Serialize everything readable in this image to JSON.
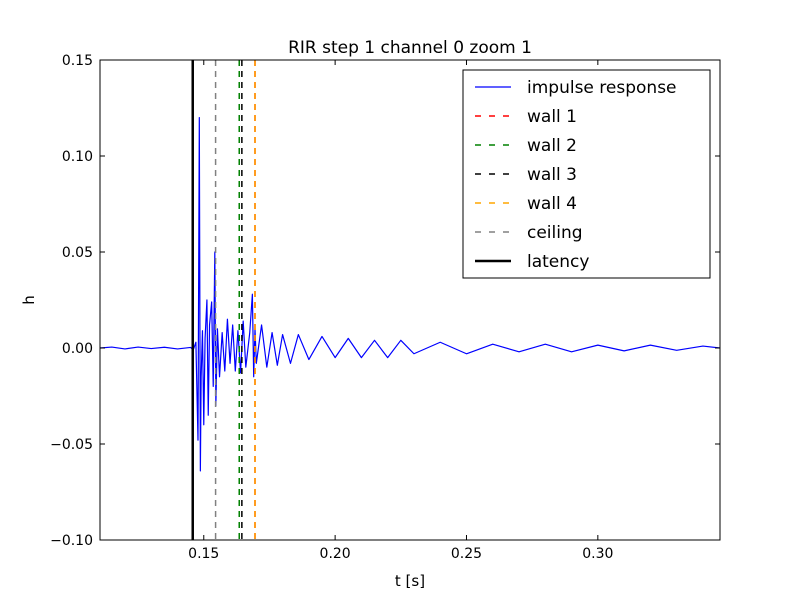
{
  "chart_data": {
    "type": "line",
    "title": "RIR step 1 channel 0 zoom 1",
    "xlabel": "t [s]",
    "ylabel": "h",
    "xlim": [
      0.1105,
      0.3465
    ],
    "ylim": [
      -0.1,
      0.15
    ],
    "x_ticks": [
      0.15,
      0.2,
      0.25,
      0.3
    ],
    "x_tick_labels": [
      "0.15",
      "0.20",
      "0.25",
      "0.30"
    ],
    "y_ticks": [
      -0.1,
      -0.05,
      0.0,
      0.05,
      0.1,
      0.15
    ],
    "y_tick_labels": [
      "−0.10",
      "−0.05",
      "0.00",
      "0.05",
      "0.10",
      "0.15"
    ],
    "grid": false,
    "legend_position": "top-right",
    "series": [
      {
        "name": "impulse response",
        "color": "#0000ff",
        "style": "solid",
        "points": [
          [
            0.1105,
            0.0
          ],
          [
            0.115,
            0.0005
          ],
          [
            0.12,
            -0.0005
          ],
          [
            0.125,
            0.0005
          ],
          [
            0.13,
            -0.0003
          ],
          [
            0.135,
            0.0004
          ],
          [
            0.14,
            -0.0005
          ],
          [
            0.145,
            0.0003
          ],
          [
            0.146,
            -0.001
          ],
          [
            0.147,
            0.003
          ],
          [
            0.1478,
            -0.048
          ],
          [
            0.1483,
            0.12
          ],
          [
            0.1487,
            -0.064
          ],
          [
            0.149,
            -0.015
          ],
          [
            0.1495,
            0.009
          ],
          [
            0.15,
            -0.04
          ],
          [
            0.1505,
            0.005
          ],
          [
            0.1512,
            0.025
          ],
          [
            0.1517,
            -0.035
          ],
          [
            0.1522,
            0.012
          ],
          [
            0.153,
            0.024
          ],
          [
            0.1536,
            -0.02
          ],
          [
            0.1542,
            0.05
          ],
          [
            0.1546,
            -0.03
          ],
          [
            0.1552,
            0.01
          ],
          [
            0.156,
            -0.015
          ],
          [
            0.157,
            0.008
          ],
          [
            0.158,
            -0.012
          ],
          [
            0.159,
            0.015
          ],
          [
            0.16,
            -0.008
          ],
          [
            0.161,
            0.012
          ],
          [
            0.162,
            -0.012
          ],
          [
            0.163,
            0.009
          ],
          [
            0.164,
            -0.013
          ],
          [
            0.165,
            0.014
          ],
          [
            0.166,
            -0.01
          ],
          [
            0.1675,
            0.008
          ],
          [
            0.1685,
            0.028
          ],
          [
            0.169,
            -0.015
          ],
          [
            0.1695,
            0.01
          ],
          [
            0.17,
            -0.008
          ],
          [
            0.172,
            0.012
          ],
          [
            0.174,
            -0.01
          ],
          [
            0.176,
            0.008
          ],
          [
            0.178,
            -0.009
          ],
          [
            0.18,
            0.007
          ],
          [
            0.183,
            -0.008
          ],
          [
            0.186,
            0.007
          ],
          [
            0.19,
            -0.006
          ],
          [
            0.195,
            0.006
          ],
          [
            0.2,
            -0.005
          ],
          [
            0.205,
            0.005
          ],
          [
            0.21,
            -0.005
          ],
          [
            0.215,
            0.004
          ],
          [
            0.22,
            -0.005
          ],
          [
            0.225,
            0.004
          ],
          [
            0.23,
            -0.003
          ],
          [
            0.24,
            0.003
          ],
          [
            0.25,
            -0.003
          ],
          [
            0.26,
            0.002
          ],
          [
            0.27,
            -0.002
          ],
          [
            0.28,
            0.002
          ],
          [
            0.29,
            -0.002
          ],
          [
            0.3,
            0.0015
          ],
          [
            0.31,
            -0.0015
          ],
          [
            0.32,
            0.0015
          ],
          [
            0.33,
            -0.0012
          ],
          [
            0.34,
            0.001
          ],
          [
            0.3465,
            0.0
          ]
        ]
      },
      {
        "name": "wall 1",
        "color": "#ff0000",
        "style": "dashed",
        "x": 0.1695
      },
      {
        "name": "wall 2",
        "color": "#008000",
        "style": "dashed",
        "x": 0.1635
      },
      {
        "name": "wall 3",
        "color": "#000000",
        "style": "dashed",
        "x": 0.1645
      },
      {
        "name": "wall 4",
        "color": "#ffa500",
        "style": "dashed",
        "x": 0.1695
      },
      {
        "name": "ceiling",
        "color": "#808080",
        "style": "dashed",
        "x": 0.1545
      },
      {
        "name": "latency",
        "color": "#000000",
        "style": "solid-thick",
        "x": 0.1458
      }
    ]
  }
}
